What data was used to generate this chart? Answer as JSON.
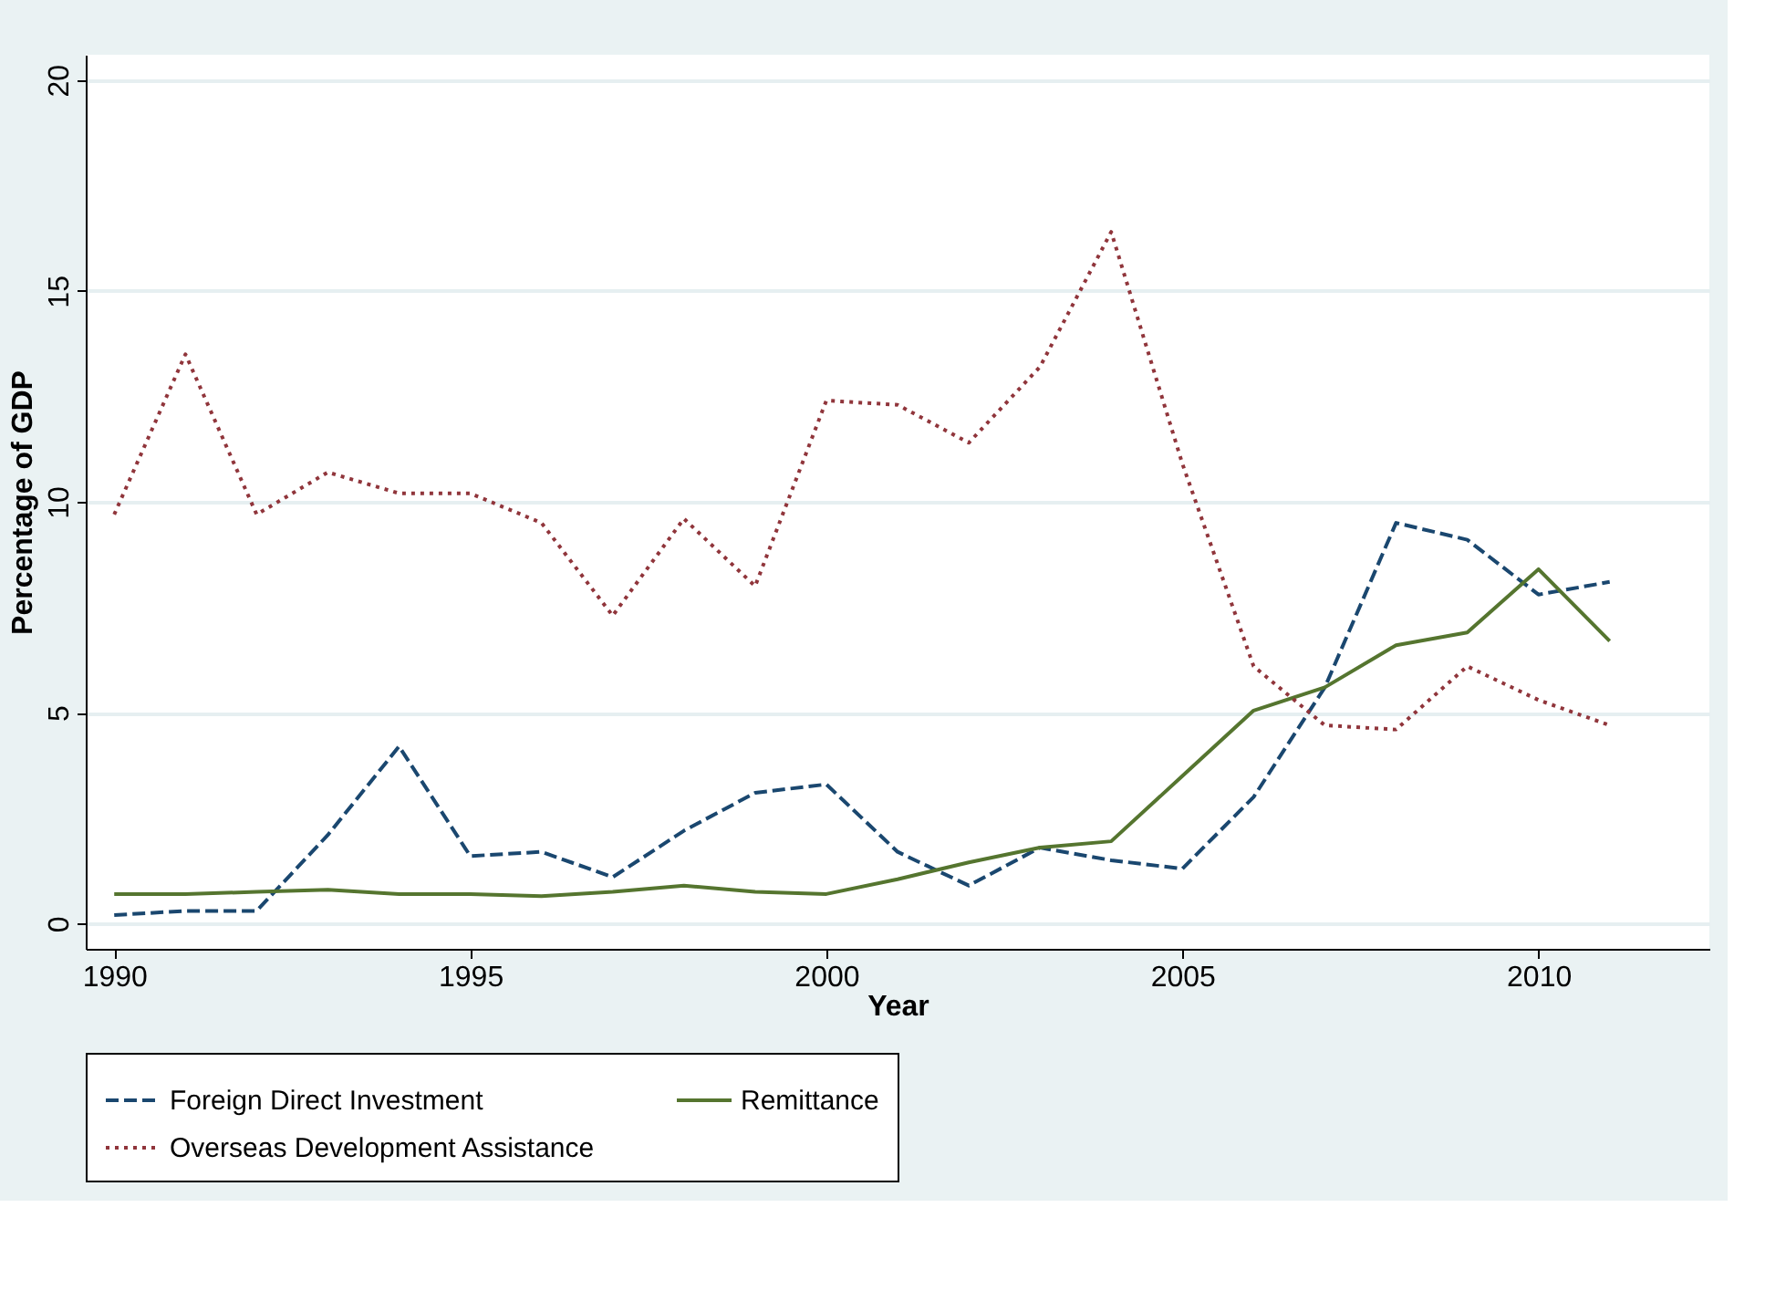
{
  "chart_data": {
    "type": "line",
    "xlabel": "Year",
    "ylabel": "Percentage of GDP",
    "x": [
      1990,
      1991,
      1992,
      1993,
      1994,
      1995,
      1996,
      1997,
      1998,
      1999,
      2000,
      2001,
      2002,
      2003,
      2004,
      2005,
      2006,
      2007,
      2008,
      2009,
      2010,
      2011
    ],
    "series": [
      {
        "name": "Foreign Direct Investment",
        "color": "#1a476f",
        "line_style": "dashed",
        "values": [
          0.2,
          0.3,
          0.3,
          2.1,
          4.2,
          1.6,
          1.7,
          1.1,
          2.2,
          3.1,
          3.3,
          1.7,
          0.9,
          1.8,
          1.5,
          1.3,
          3.0,
          5.6,
          9.5,
          9.1,
          7.8,
          8.1
        ]
      },
      {
        "name": "Remittance",
        "color": "#55752f",
        "line_style": "solid",
        "values": [
          0.7,
          0.7,
          0.75,
          0.8,
          0.7,
          0.7,
          0.65,
          0.75,
          0.9,
          0.75,
          0.7,
          1.05,
          1.45,
          1.8,
          1.95,
          3.5,
          5.05,
          5.6,
          6.6,
          6.9,
          8.4,
          6.7
        ]
      },
      {
        "name": "Overseas Development Assistance",
        "color": "#90353b",
        "line_style": "dotted",
        "values": [
          9.7,
          13.5,
          9.7,
          10.7,
          10.2,
          10.2,
          9.5,
          7.3,
          9.6,
          8.0,
          12.4,
          12.3,
          11.4,
          13.2,
          16.4,
          10.9,
          6.1,
          4.7,
          4.6,
          6.1,
          5.3,
          4.7
        ]
      }
    ],
    "xlim": [
      1989.6,
      2012.4
    ],
    "xticks": [
      1990,
      1995,
      2000,
      2005,
      2010
    ],
    "ylim": [
      -0.6,
      20.6
    ],
    "yticks": [
      0,
      5,
      10,
      15,
      20
    ],
    "grid": "y",
    "legend": "bottom",
    "marker": "none"
  }
}
